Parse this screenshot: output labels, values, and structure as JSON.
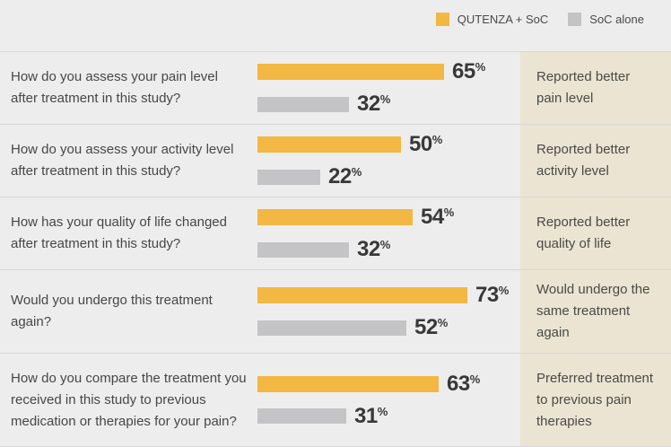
{
  "legend": [
    {
      "label": "QUTENZA + SoC",
      "color": "#F2B843"
    },
    {
      "label": "SoC alone",
      "color": "#C4C4C6"
    }
  ],
  "colors": {
    "background": "#EDEDEE",
    "bar_yellow": "#F2B843",
    "bar_gray": "#C4C4C6",
    "result_column_beige": "#EBE4D3",
    "divider": "#D8D8D8",
    "text_dark": "#383838"
  },
  "chart_data": {
    "type": "bar",
    "orientation": "horizontal",
    "unit": "%",
    "xlim": [
      0,
      100
    ],
    "legend_position": "top-right",
    "series_names": [
      "QUTENZA + SoC",
      "SoC alone"
    ],
    "rows": [
      {
        "question": "How do you assess your pain level after treatment in this study?",
        "bars": [
          {
            "series": "QUTENZA + SoC",
            "value": 65
          },
          {
            "series": "SoC alone",
            "value": 32
          }
        ],
        "result": "Reported better pain level"
      },
      {
        "question": "How do you assess your activity level after treatment in this study?",
        "bars": [
          {
            "series": "QUTENZA + SoC",
            "value": 50
          },
          {
            "series": "SoC alone",
            "value": 22
          }
        ],
        "result": "Reported better activity level"
      },
      {
        "question": "How has your quality of life changed after treatment in this study?",
        "bars": [
          {
            "series": "QUTENZA + SoC",
            "value": 54
          },
          {
            "series": "SoC alone",
            "value": 32
          }
        ],
        "result": "Reported better quality of life"
      },
      {
        "question": "Would you undergo this treatment again?",
        "bars": [
          {
            "series": "QUTENZA + SoC",
            "value": 73
          },
          {
            "series": "SoC alone",
            "value": 52
          }
        ],
        "result": "Would undergo the same treatment again"
      },
      {
        "question": "How do you compare the treatment you received in this study to previous medication or therapies for your pain?",
        "bars": [
          {
            "series": "QUTENZA + SoC",
            "value": 63
          },
          {
            "series": "SoC alone",
            "value": 31
          }
        ],
        "result": "Preferred treatment to previous pain therapies"
      }
    ]
  }
}
